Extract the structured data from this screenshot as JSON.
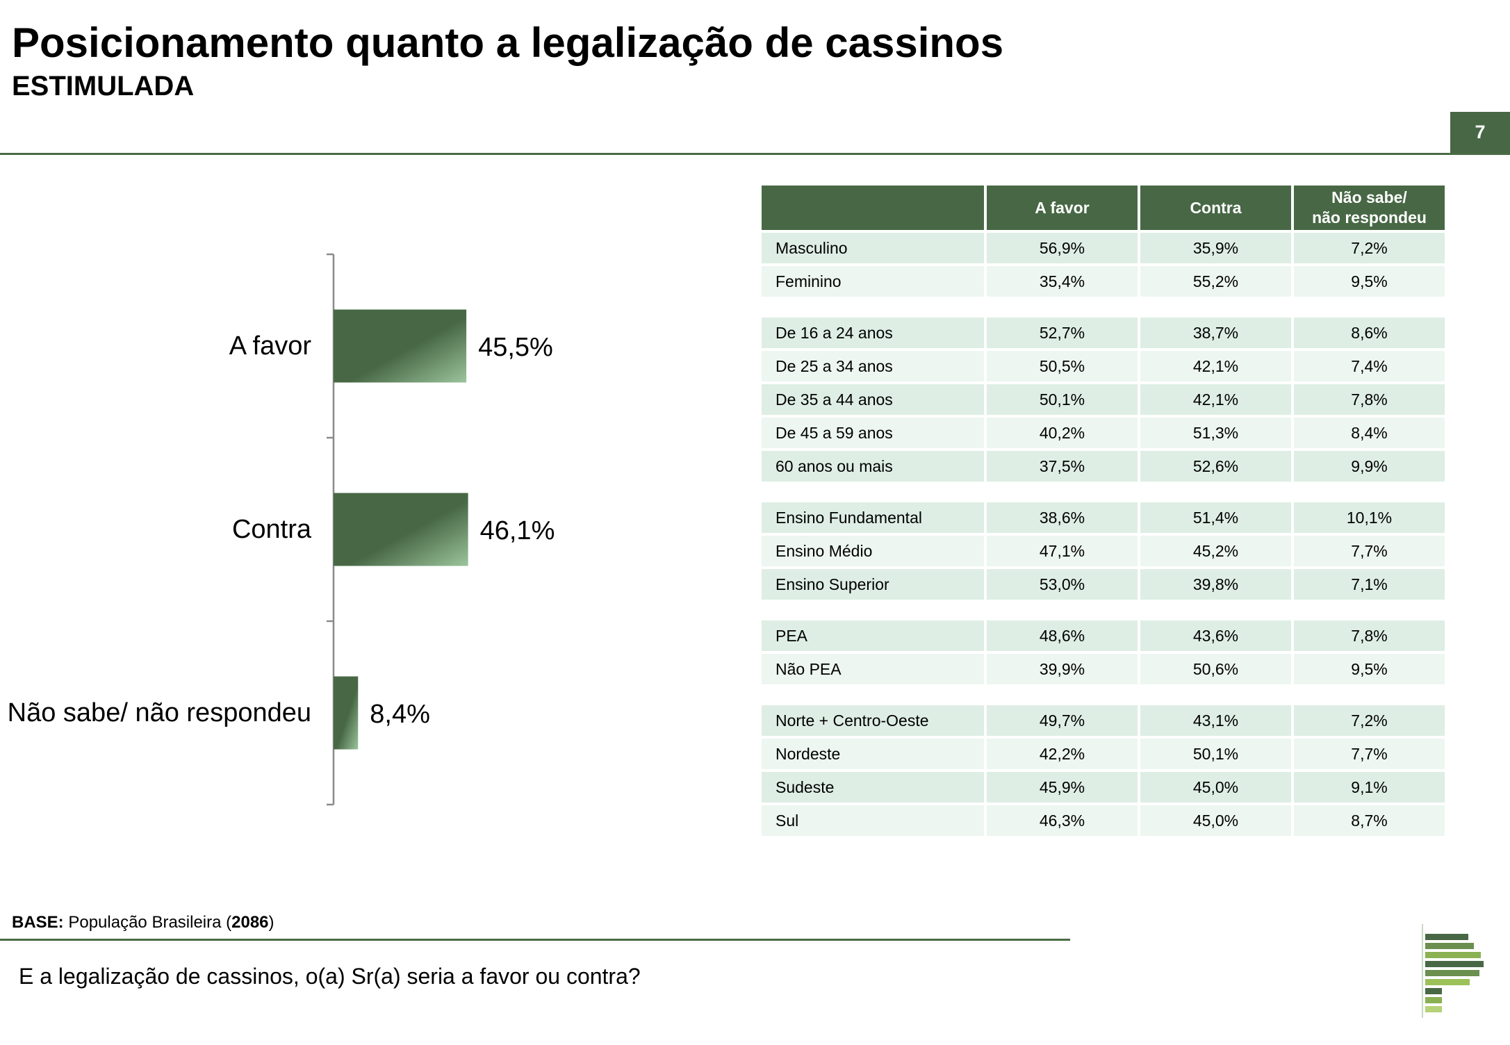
{
  "header": {
    "title": "Posicionamento quanto a legalização de cassinos",
    "subtitle": "ESTIMULADA",
    "page_number": "7"
  },
  "colors": {
    "bar_dark": "#486845",
    "bar_light": "#9bc49c",
    "table_header": "#486845",
    "row_a": "#deeee4",
    "row_b": "#edf6f1",
    "rule": "#4a6b44"
  },
  "chart_data": {
    "type": "bar",
    "orientation": "horizontal",
    "categories": [
      "A favor",
      "Contra",
      "Não sabe/ não respondeu"
    ],
    "values": [
      45.5,
      46.1,
      8.4
    ],
    "value_labels": [
      "45,5%",
      "46,1%",
      "8,4%"
    ],
    "xlim": [
      0,
      100
    ],
    "grid": false,
    "legend": false
  },
  "table": {
    "headers": [
      "",
      "A favor",
      "Contra",
      "Não sabe/\nnão respondeu"
    ],
    "groups": [
      [
        [
          "Masculino",
          "56,9%",
          "35,9%",
          "7,2%"
        ],
        [
          "Feminino",
          "35,4%",
          "55,2%",
          "9,5%"
        ]
      ],
      [
        [
          "De 16 a 24 anos",
          "52,7%",
          "38,7%",
          "8,6%"
        ],
        [
          "De 25 a 34 anos",
          "50,5%",
          "42,1%",
          "7,4%"
        ],
        [
          "De 35 a 44 anos",
          "50,1%",
          "42,1%",
          "7,8%"
        ],
        [
          "De 45 a 59 anos",
          "40,2%",
          "51,3%",
          "8,4%"
        ],
        [
          "60 anos ou mais",
          "37,5%",
          "52,6%",
          "9,9%"
        ]
      ],
      [
        [
          "Ensino Fundamental",
          "38,6%",
          "51,4%",
          "10,1%"
        ],
        [
          "Ensino Médio",
          "47,1%",
          "45,2%",
          "7,7%"
        ],
        [
          "Ensino Superior",
          "53,0%",
          "39,8%",
          "7,1%"
        ]
      ],
      [
        [
          "PEA",
          "48,6%",
          "43,6%",
          "7,8%"
        ],
        [
          "Não PEA",
          "39,9%",
          "50,6%",
          "9,5%"
        ]
      ],
      [
        [
          "Norte + Centro-Oeste",
          "49,7%",
          "43,1%",
          "7,2%"
        ],
        [
          "Nordeste",
          "42,2%",
          "50,1%",
          "7,7%"
        ],
        [
          "Sudeste",
          "45,9%",
          "45,0%",
          "9,1%"
        ],
        [
          "Sul",
          "46,3%",
          "45,0%",
          "8,7%"
        ]
      ]
    ]
  },
  "footer": {
    "base_label": "BASE:",
    "base_text_before": "População Brasileira (",
    "base_count": "2086",
    "base_text_after": ")",
    "question": "E a legalização de cassinos, o(a) Sr(a) seria a favor ou contra?"
  }
}
